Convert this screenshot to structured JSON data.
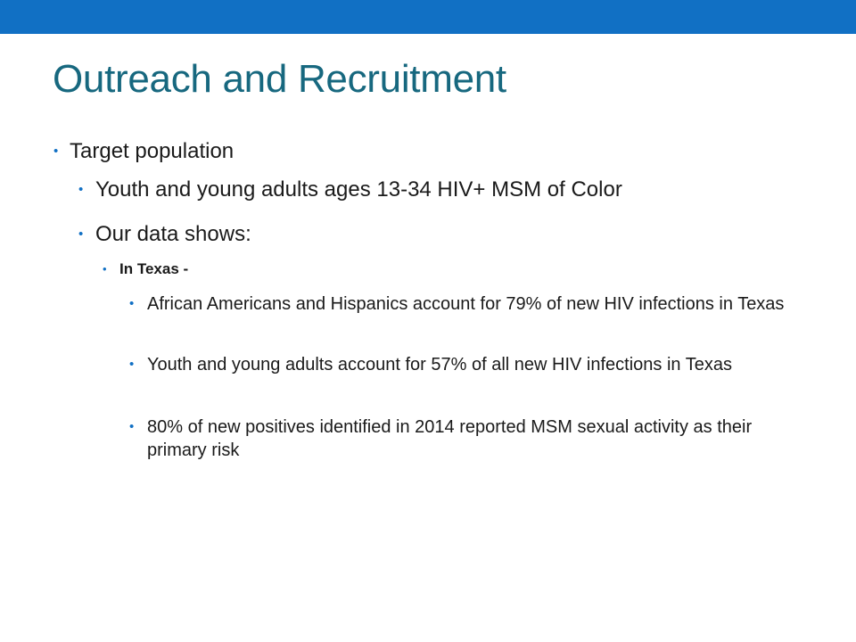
{
  "slide": {
    "title": "Outreach and Recruitment",
    "bullet_glyph": "•",
    "items": {
      "target_population": "Target population",
      "youth_adults": "Youth and young adults ages 13-34 HIV+ MSM of Color",
      "data_shows": "Our data shows:",
      "in_texas": "In Texas -",
      "stat_1": "African Americans and Hispanics account for 79% of new HIV infections in Texas",
      "stat_2": "Youth and young adults account for 57% of all new HIV infections in Texas",
      "stat_3": "80% of new positives identified in 2014 reported MSM sexual activity as their primary risk"
    }
  },
  "colors": {
    "top_bar": "#1170c4",
    "title": "#17687f",
    "bullet": "#1170c4",
    "body_text": "#1a1a1a"
  }
}
